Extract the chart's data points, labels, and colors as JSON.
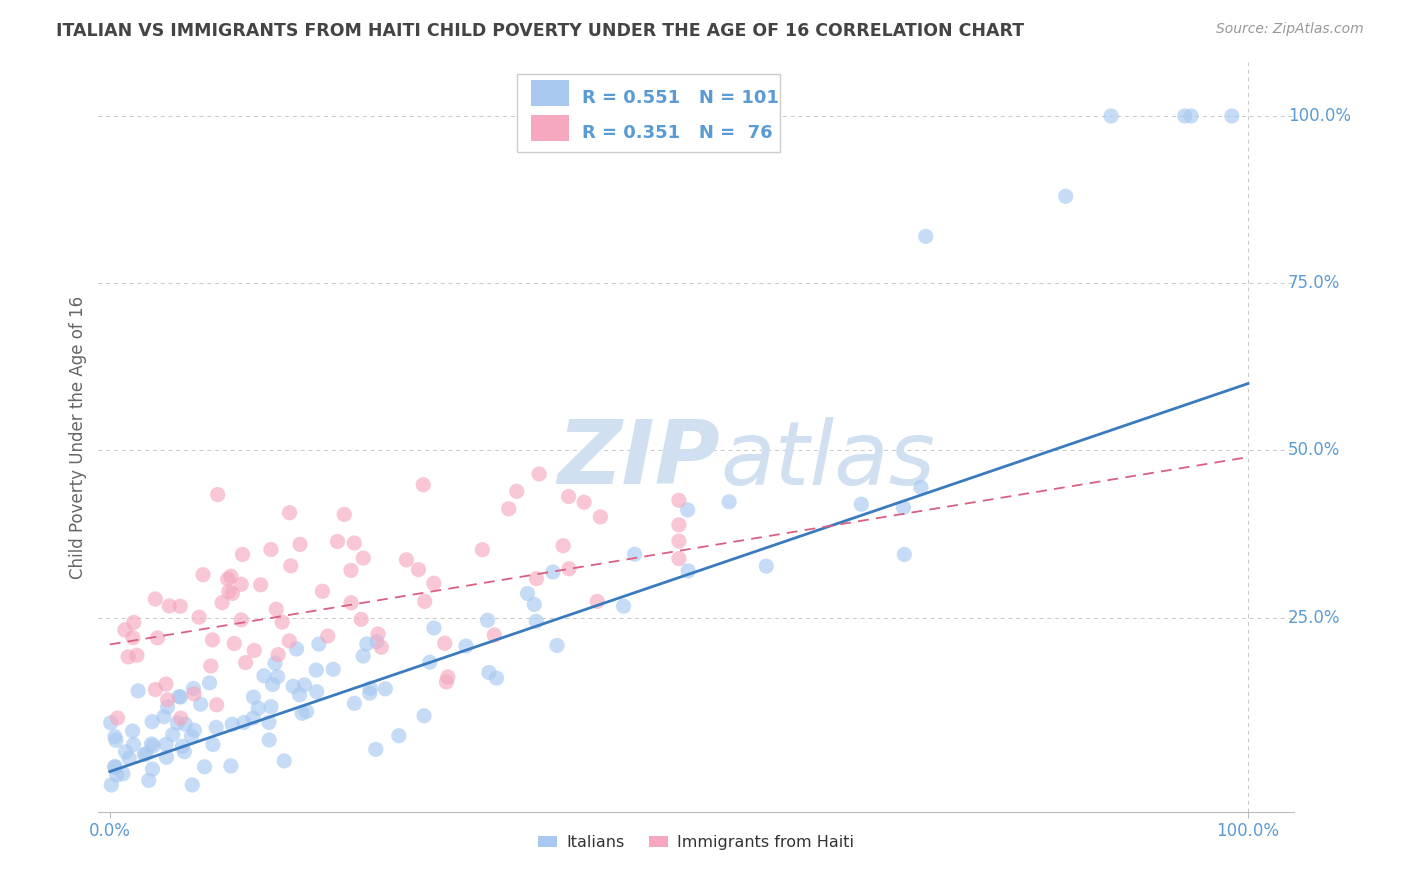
{
  "title": "ITALIAN VS IMMIGRANTS FROM HAITI CHILD POVERTY UNDER THE AGE OF 16 CORRELATION CHART",
  "source": "Source: ZipAtlas.com",
  "ylabel": "Child Poverty Under the Age of 16",
  "legend_italian_R": "0.551",
  "legend_italian_N": "101",
  "legend_haiti_R": "0.351",
  "legend_haiti_N": "76",
  "italian_color": "#a8c8f0",
  "haiti_color": "#f5a8be",
  "italian_line_color": "#3a7bbf",
  "haiti_line_color": "#d96080",
  "watermark_color": "#d0e0f0",
  "background_color": "#ffffff",
  "grid_color": "#c8c8c8",
  "title_color": "#444444",
  "axis_label_color": "#5b9bd5",
  "ylabel_color": "#666666",
  "source_color": "#999999",
  "xlim": [
    0.0,
    1.0
  ],
  "ylim": [
    0.0,
    1.0
  ],
  "xtick_vals": [
    0.0,
    1.0
  ],
  "xtick_labels": [
    "0.0%",
    "100.0%"
  ],
  "ytick_vals": [
    0.25,
    0.5,
    0.75,
    1.0
  ],
  "ytick_labels": [
    "25.0%",
    "50.0%",
    "75.0%",
    "100.0%"
  ]
}
